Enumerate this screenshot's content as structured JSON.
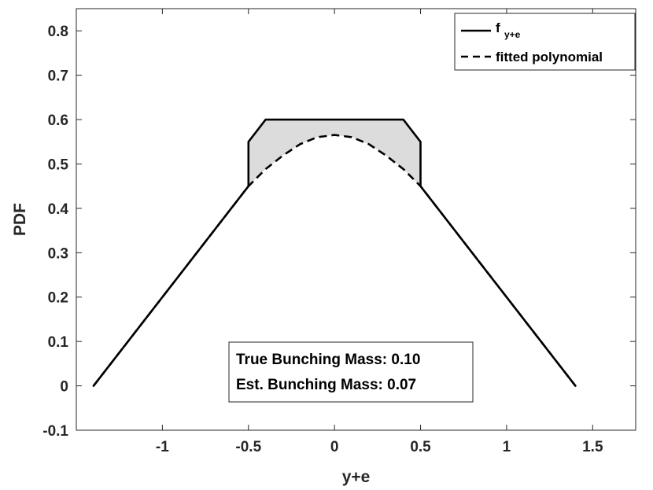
{
  "chart_data": {
    "type": "line",
    "xlabel": "y+e",
    "ylabel": "PDF",
    "xlim": [
      -1.5,
      1.75
    ],
    "ylim": [
      -0.1,
      0.85
    ],
    "xticks": [
      -1,
      -0.5,
      0,
      0.5,
      1,
      1.5
    ],
    "xtick_labels": [
      "-1",
      "-0.5",
      "0",
      "0.5",
      "1",
      "1.5"
    ],
    "yticks": [
      -0.1,
      0,
      0.1,
      0.2,
      0.3,
      0.4,
      0.5,
      0.6,
      0.7,
      0.8
    ],
    "ytick_labels": [
      "-0.1",
      "0",
      "0.1",
      "0.2",
      "0.3",
      "0.4",
      "0.5",
      "0.6",
      "0.7",
      "0.8"
    ],
    "grid": false,
    "legend_position": "top-right",
    "series": [
      {
        "name": "f",
        "name_subscript": "y+e",
        "style": "solid",
        "color": "#000000",
        "x": [
          -1.4,
          -0.5,
          -0.5,
          -0.4,
          0.4,
          0.5,
          0.5,
          1.4
        ],
        "y": [
          0.0,
          0.45,
          0.55,
          0.6,
          0.6,
          0.55,
          0.45,
          0.0
        ]
      },
      {
        "name": "fitted polynomial",
        "style": "dashed",
        "color": "#000000",
        "x": [
          -1.4,
          -0.5,
          -0.4,
          -0.3,
          -0.2,
          -0.1,
          0.0,
          0.1,
          0.2,
          0.3,
          0.4,
          0.5,
          1.4
        ],
        "y": [
          0.0,
          0.45,
          0.4885,
          0.519,
          0.5447,
          0.5604,
          0.5654,
          0.5604,
          0.5447,
          0.519,
          0.4885,
          0.45,
          0.0
        ]
      }
    ],
    "shaded_region": {
      "x_range": [
        -0.5,
        0.5
      ],
      "color": "#dcdcdc"
    },
    "annotations": [
      "True Bunching Mass: 0.10",
      "Est. Bunching Mass: 0.07"
    ]
  }
}
